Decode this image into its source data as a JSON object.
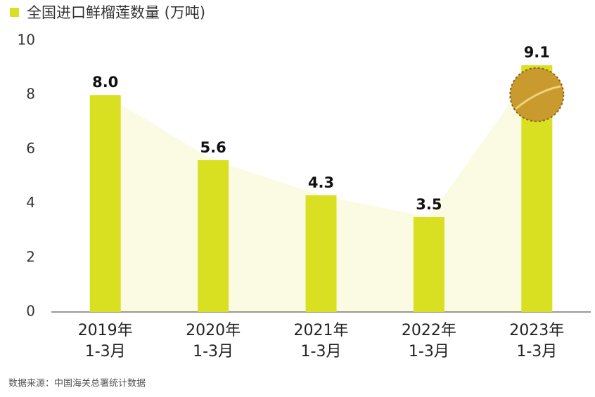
{
  "chart_data": {
    "type": "bar",
    "legend_label": "全国进口鲜榴莲数量 (万吨)",
    "categories": [
      "2019年\n1-3月",
      "2020年\n1-3月",
      "2021年\n1-3月",
      "2022年\n1-3月",
      "2023年\n1-3月"
    ],
    "values": [
      8.0,
      5.6,
      4.3,
      3.5,
      9.1
    ],
    "value_labels": [
      "8.0",
      "5.6",
      "4.3",
      "3.5",
      "9.1"
    ],
    "color": "#d9e021",
    "ylim": [
      0,
      10
    ],
    "yticks": [
      0,
      2,
      4,
      6,
      8,
      10
    ],
    "grid": false,
    "source": "数据来源：中国海关总署统计数据"
  }
}
